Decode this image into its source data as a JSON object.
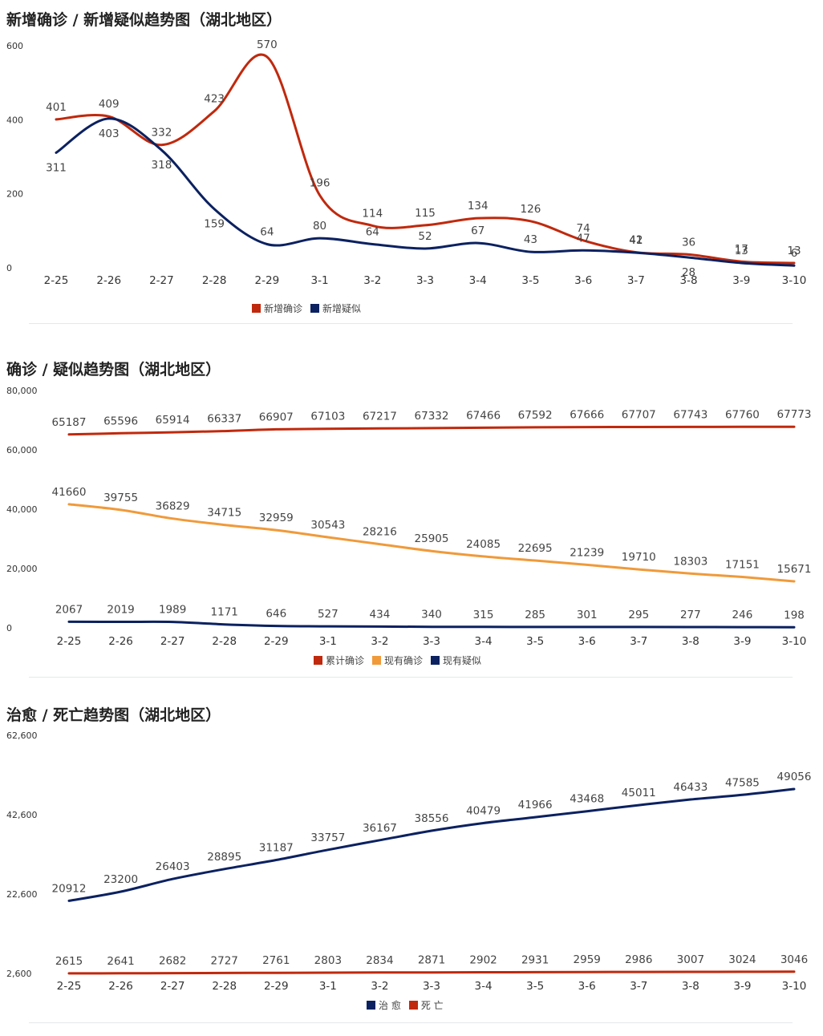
{
  "chart_data": [
    {
      "type": "line",
      "title": "新增确诊 / 新增疑似趋势图（湖北地区）",
      "categories": [
        "2-25",
        "2-26",
        "2-27",
        "2-28",
        "2-29",
        "3-1",
        "3-2",
        "3-3",
        "3-4",
        "3-5",
        "3-6",
        "3-7",
        "3-8",
        "3-9",
        "3-10"
      ],
      "ylim": [
        0,
        600
      ],
      "yticks": [
        "0",
        "200",
        "400",
        "600"
      ],
      "series": [
        {
          "name": "新增确诊",
          "color": "#c0290d",
          "values": [
            401,
            409,
            332,
            423,
            570,
            196,
            114,
            115,
            134,
            126,
            74,
            42,
            36,
            17,
            13
          ]
        },
        {
          "name": "新增疑似",
          "color": "#0b2160",
          "values": [
            311,
            403,
            318,
            159,
            64,
            80,
            64,
            52,
            67,
            43,
            47,
            41,
            28,
            13,
            6
          ]
        }
      ],
      "legend": "bottom-center",
      "grid": false
    },
    {
      "type": "line",
      "title": "确诊 / 疑似趋势图（湖北地区）",
      "categories": [
        "2-25",
        "2-26",
        "2-27",
        "2-28",
        "2-29",
        "3-1",
        "3-2",
        "3-3",
        "3-4",
        "3-5",
        "3-6",
        "3-7",
        "3-8",
        "3-9",
        "3-10"
      ],
      "ylim": [
        0,
        80000
      ],
      "yticks": [
        "0",
        "20,000",
        "40,000",
        "60,000",
        "80,000"
      ],
      "series": [
        {
          "name": "累计确诊",
          "color": "#c0290d",
          "values": [
            65187,
            65596,
            65914,
            66337,
            66907,
            67103,
            67217,
            67332,
            67466,
            67592,
            67666,
            67707,
            67743,
            67760,
            67773
          ]
        },
        {
          "name": "现有确诊",
          "color": "#f09a3a",
          "values": [
            41660,
            39755,
            36829,
            34715,
            32959,
            30543,
            28216,
            25905,
            24085,
            22695,
            21239,
            19710,
            18303,
            17151,
            15671
          ]
        },
        {
          "name": "现有疑似",
          "color": "#0b2160",
          "values": [
            2067,
            2019,
            1989,
            1171,
            646,
            527,
            434,
            340,
            315,
            285,
            301,
            295,
            277,
            246,
            198
          ]
        }
      ],
      "legend": "bottom-center",
      "grid": false
    },
    {
      "type": "line",
      "title": "治愈 / 死亡趋势图（湖北地区）",
      "categories": [
        "2-25",
        "2-26",
        "2-27",
        "2-28",
        "2-29",
        "3-1",
        "3-2",
        "3-3",
        "3-4",
        "3-5",
        "3-6",
        "3-7",
        "3-8",
        "3-9",
        "3-10"
      ],
      "ylim": [
        2600,
        62600
      ],
      "yticks": [
        "2,600",
        "22,600",
        "42,600",
        "62,600"
      ],
      "series": [
        {
          "name": "治 愈",
          "color": "#0b2160",
          "values": [
            20912,
            23200,
            26403,
            28895,
            31187,
            33757,
            36167,
            38556,
            40479,
            41966,
            43468,
            45011,
            46433,
            47585,
            49056
          ]
        },
        {
          "name": "死 亡",
          "color": "#c0290d",
          "values": [
            2615,
            2641,
            2682,
            2727,
            2761,
            2803,
            2834,
            2871,
            2902,
            2931,
            2959,
            2986,
            3007,
            3024,
            3046
          ]
        }
      ],
      "legend": "bottom-center",
      "grid": false
    }
  ]
}
